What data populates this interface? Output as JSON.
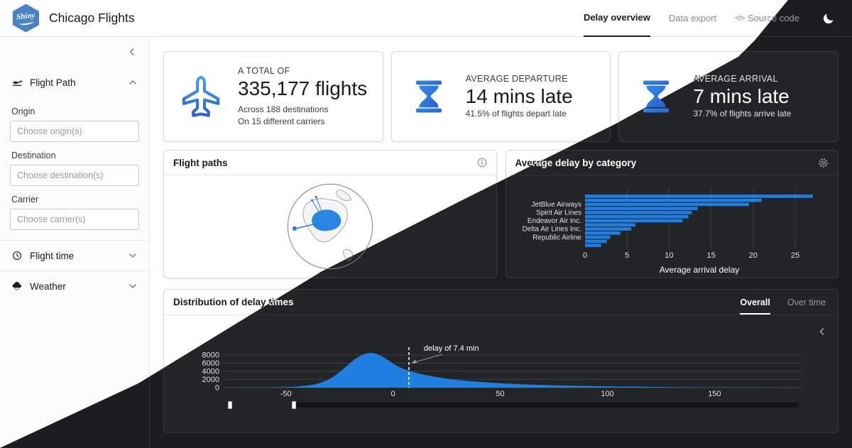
{
  "colors": {
    "accent": "#1e7fe0",
    "logo_blue": "#4a82c6",
    "icon_gradient": [
      "#4aa0f5",
      "#2b5fd0"
    ],
    "dark_bg": "#1b1d1f",
    "light_bg": "#ffffff"
  },
  "navbar": {
    "logo_text": "Shiny",
    "title": "Chicago Flights",
    "tabs": [
      {
        "label": "Delay overview",
        "active": true
      },
      {
        "label": "Data export",
        "active": false
      },
      {
        "label": "Source code",
        "active": false,
        "icon_text": "</>"
      }
    ]
  },
  "sidebar": {
    "sections": [
      {
        "label": "Flight Path",
        "icon": "plane-departure-icon",
        "expanded": true,
        "fields": [
          {
            "label": "Origin",
            "placeholder": "Choose origin(s)"
          },
          {
            "label": "Destination",
            "placeholder": "Choose destination(s)"
          },
          {
            "label": "Carrier",
            "placeholder": "Choose carrier(s)"
          }
        ]
      },
      {
        "label": "Flight time",
        "icon": "clock-icon",
        "expanded": false
      },
      {
        "label": "Weather",
        "icon": "cloud-rain-icon",
        "expanded": false
      }
    ]
  },
  "value_boxes": [
    {
      "icon": "plane-icon",
      "kicker": "A TOTAL OF",
      "value": "335,177 flights",
      "notes": [
        "Across 188 destinations",
        "On 15 different carriers"
      ]
    },
    {
      "icon": "hourglass-icon",
      "kicker": "AVERAGE DEPARTURE",
      "value": "14 mins late",
      "notes": [
        "41.5% of flights depart late"
      ]
    },
    {
      "icon": "hourglass-icon",
      "kicker": "AVERAGE ARRIVAL",
      "value": "7 mins late",
      "notes": [
        "37.7% of flights arrive late"
      ]
    }
  ],
  "cards": {
    "flight_paths": {
      "title": "Flight paths",
      "header_icon": "info-icon"
    },
    "avg_delay": {
      "title": "Average delay by category",
      "header_icon": "gear-icon"
    },
    "distribution": {
      "title": "Distribution of delay times",
      "tabs": [
        {
          "label": "Overall",
          "active": true
        },
        {
          "label": "Over time",
          "active": false
        }
      ]
    }
  },
  "chart_data": [
    {
      "id": "avg-delay-bars",
      "type": "bar",
      "orientation": "horizontal",
      "title": "Average delay by category",
      "xlabel": "Average arrival delay",
      "xlim": [
        0,
        28
      ],
      "xticks": [
        0,
        5,
        10,
        15,
        20,
        25
      ],
      "categories": [
        "",
        "",
        "JetBlue Airways",
        "",
        "Spirit Air Lines",
        "",
        "Endeavor Air Inc.",
        "",
        "Delta Air Lines Inc.",
        "",
        "Republic Airline",
        "",
        ""
      ],
      "values": [
        27.1,
        21.0,
        19.5,
        13.4,
        12.7,
        12.3,
        11.6,
        6.0,
        5.5,
        4.2,
        3.0,
        2.6,
        1.9
      ],
      "bar_color": "#1e7fe0",
      "grid": true,
      "legend": false
    },
    {
      "id": "delay-histogram",
      "type": "area",
      "title": "Distribution of delay times",
      "xticks": [
        -50,
        0,
        50,
        100,
        150
      ],
      "yticks": [
        0,
        2000,
        4000,
        6000,
        8000
      ],
      "xlim": [
        -79,
        191
      ],
      "ylim": [
        0,
        8800
      ],
      "x": [
        -79,
        -70,
        -62,
        -55,
        -50,
        -46,
        -42,
        -38,
        -34,
        -30,
        -27,
        -24,
        -21,
        -18,
        -16,
        -14,
        -12,
        -10,
        -8,
        -6,
        -4,
        -2,
        0,
        2,
        4,
        6,
        8,
        10,
        13,
        16,
        20,
        24,
        28,
        32,
        36,
        40,
        45,
        50,
        55,
        60,
        65,
        70,
        75,
        80,
        90,
        100,
        108,
        112,
        116,
        120,
        130,
        140,
        150,
        160,
        170,
        180,
        191
      ],
      "y": [
        15,
        30,
        55,
        95,
        150,
        230,
        380,
        650,
        1150,
        2000,
        3000,
        4200,
        5600,
        6900,
        7600,
        8100,
        8450,
        8520,
        8350,
        7900,
        7300,
        6600,
        5900,
        5300,
        4800,
        4400,
        4050,
        3750,
        3350,
        3000,
        2600,
        2280,
        2000,
        1780,
        1580,
        1420,
        1240,
        1080,
        950,
        840,
        740,
        650,
        570,
        500,
        390,
        300,
        245,
        280,
        230,
        185,
        130,
        95,
        70,
        50,
        35,
        22,
        12
      ],
      "annotation": {
        "x": 7.4,
        "label": "delay of 7.4 min"
      },
      "fill_color": "#1e7fe0",
      "grid": true,
      "legend": false
    },
    {
      "id": "flight-map",
      "type": "map",
      "title": "Flight paths",
      "projection": "orthographic globe",
      "region": "North America",
      "highlight_color": "#1e7fe0",
      "description": "web of flight routes over the United States with spokes to Hawaii and Alaska"
    }
  ]
}
